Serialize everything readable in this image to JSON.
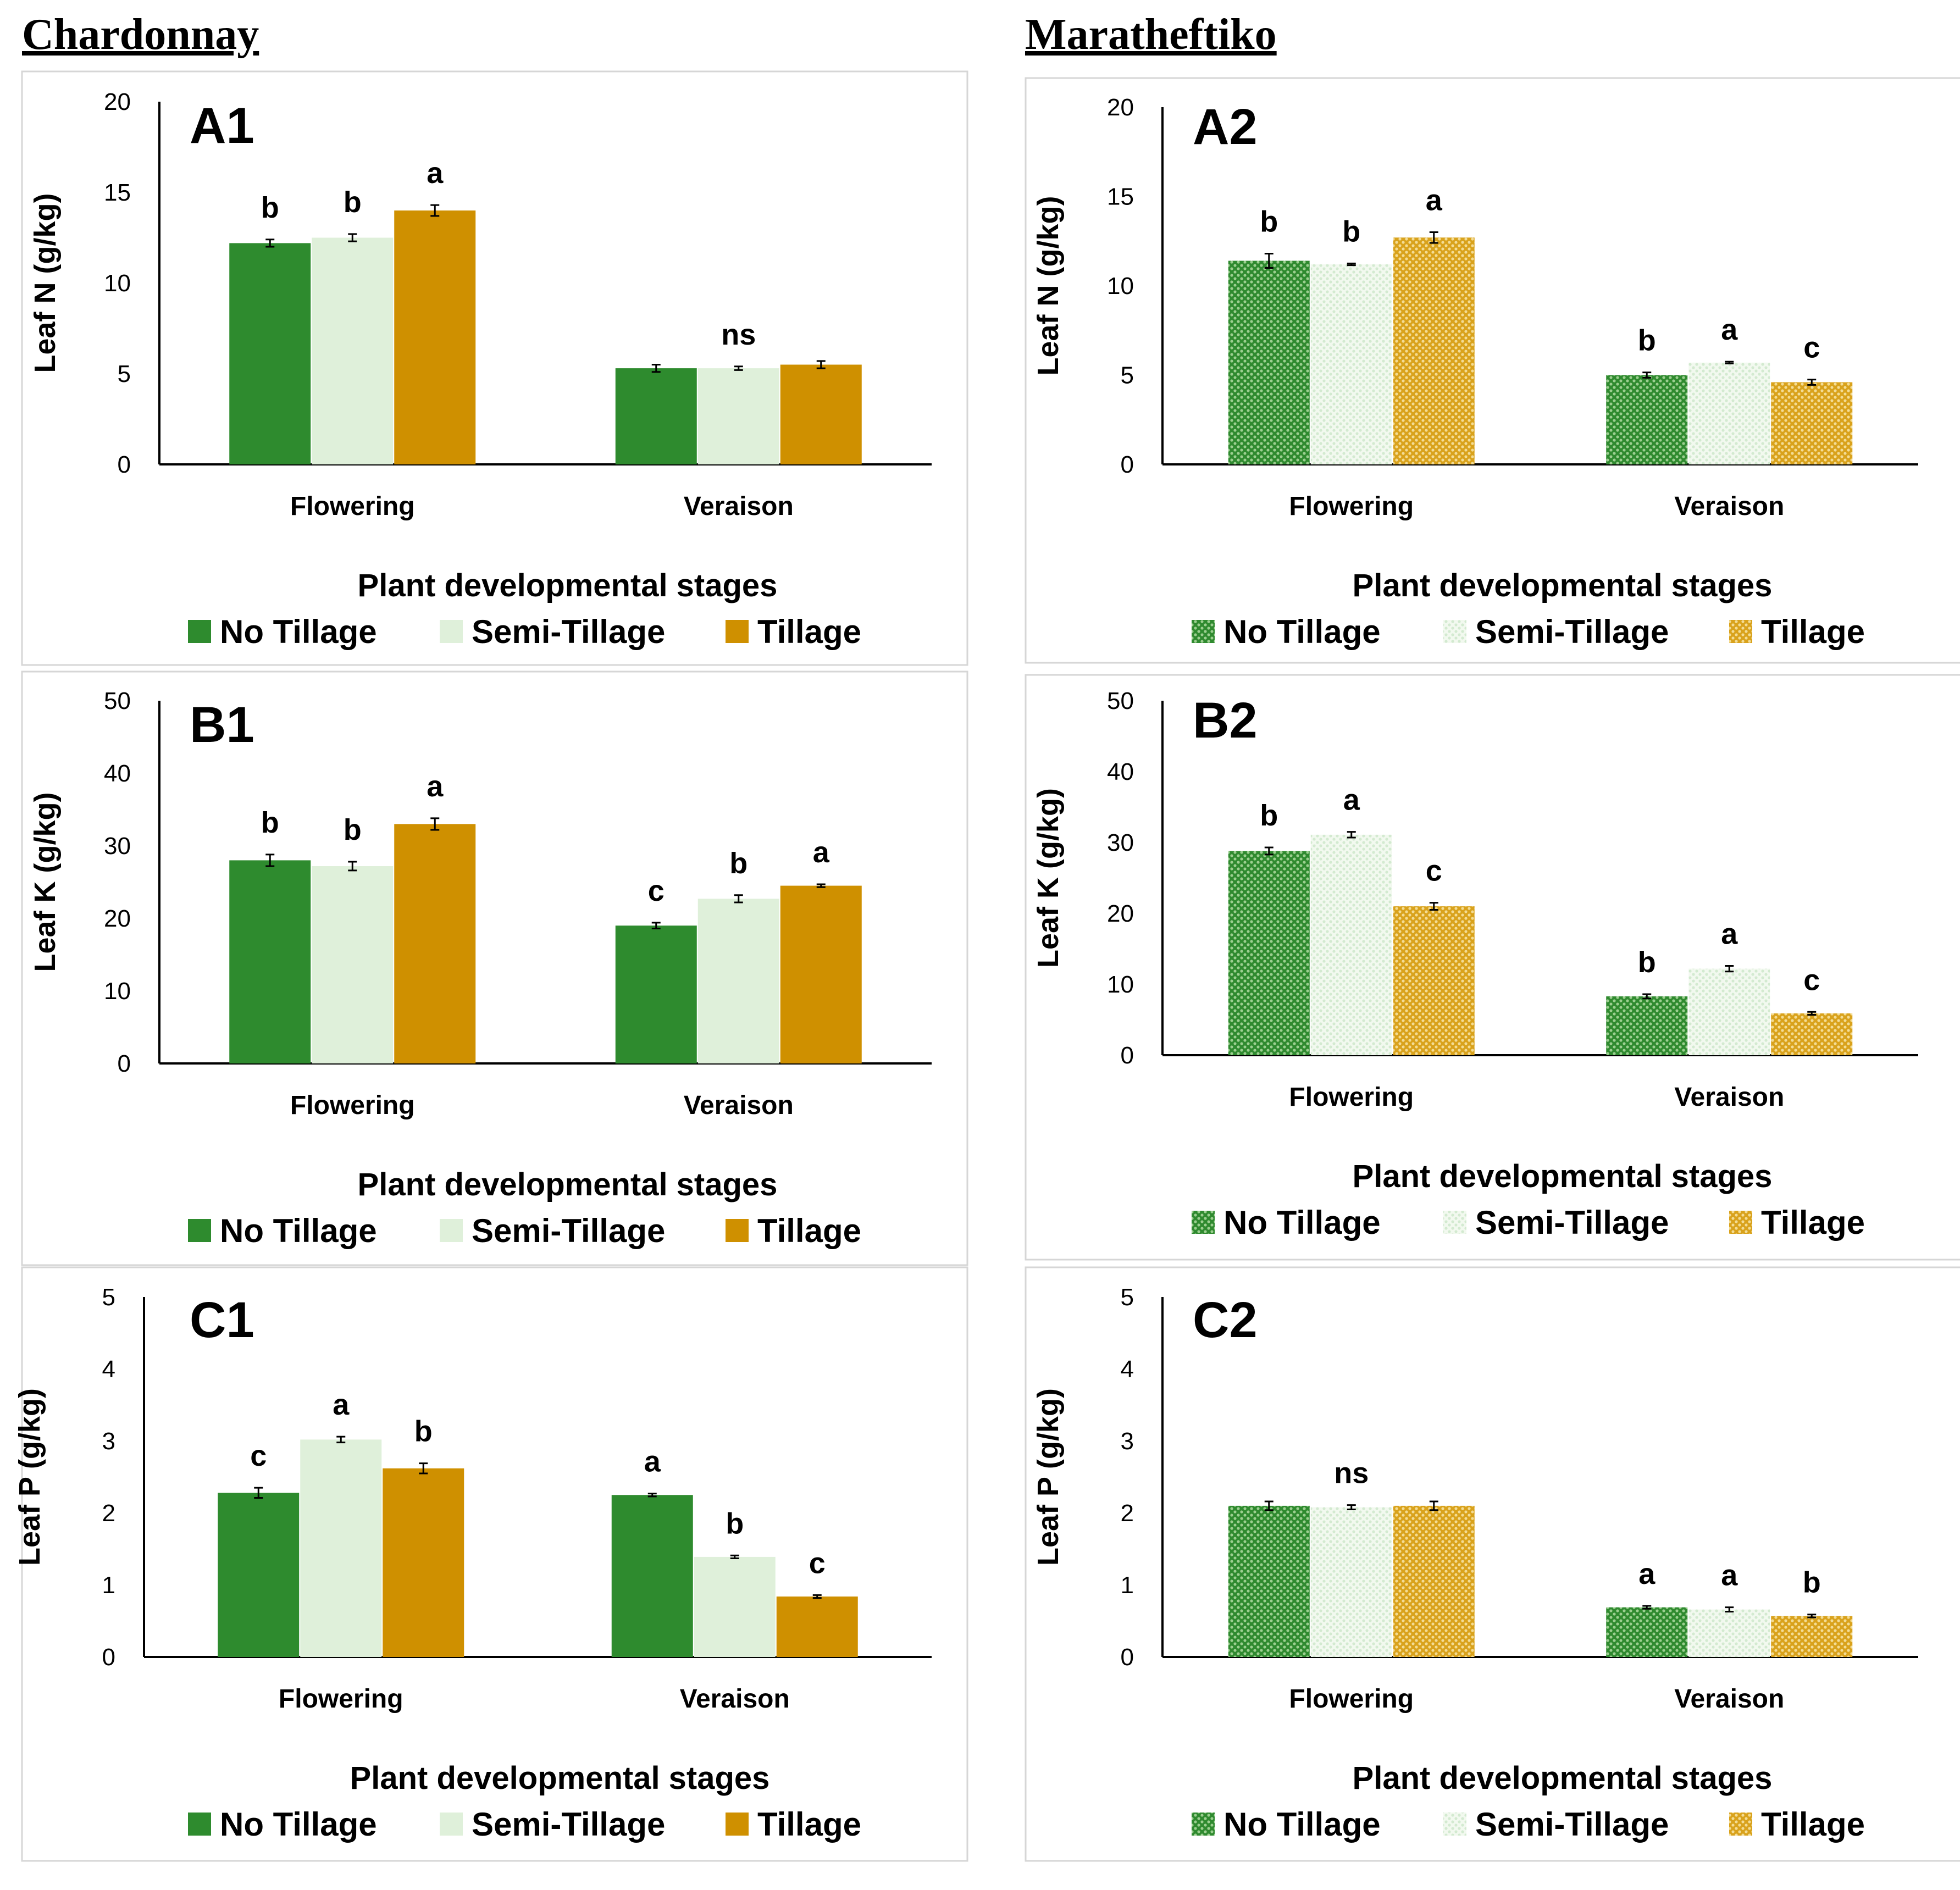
{
  "headings": {
    "left": "Chardonnay",
    "right": "Maratheftiko"
  },
  "colors": {
    "no_tillage": "#2e8b2e",
    "semi_tillage": "#dff0da",
    "tillage": "#cf9000",
    "no_tillage_pattern_bg": "#2f8a2f",
    "no_tillage_pattern_fg": "#9ccf90",
    "semi_tillage_pattern_bg": "#f2f9ef",
    "semi_tillage_pattern_fg": "#d3ead0",
    "tillage_pattern_bg": "#d9a21c",
    "tillage_pattern_fg": "#f4dc94"
  },
  "chart_data": [
    {
      "panel": "A1",
      "cultivar": "Chardonnay",
      "type": "bar",
      "patterned": false,
      "title": "",
      "xlabel": "Plant developmental stages",
      "ylabel": "Leaf N (g/kg)",
      "ylim": [
        0,
        20
      ],
      "yticks": [
        "0",
        "5",
        "10",
        "15",
        "20"
      ],
      "categories": [
        "Flowering",
        "Veraison"
      ],
      "series": [
        {
          "name": "No Tillage",
          "values": [
            12.2,
            5.3
          ],
          "errors": [
            0.2,
            0.2
          ]
        },
        {
          "name": "Semi-Tillage",
          "values": [
            12.5,
            5.3
          ],
          "errors": [
            0.2,
            0.1
          ]
        },
        {
          "name": "Tillage",
          "values": [
            14.0,
            5.5
          ],
          "errors": [
            0.3,
            0.2
          ]
        }
      ],
      "letters": [
        [
          "b",
          "b",
          "a"
        ],
        [
          "",
          "ns",
          ""
        ]
      ],
      "legend": [
        "No Tillage",
        "Semi-Tillage",
        "Tillage"
      ],
      "legend_position": "bottom"
    },
    {
      "panel": "A2",
      "cultivar": "Maratheftiko",
      "type": "bar",
      "patterned": true,
      "title": "",
      "xlabel": "Plant developmental stages",
      "ylabel": "Leaf N (g/kg)",
      "ylim": [
        0,
        20
      ],
      "yticks": [
        "0",
        "5",
        "10",
        "15",
        "20"
      ],
      "categories": [
        "Flowering",
        "Veraison"
      ],
      "series": [
        {
          "name": "No Tillage",
          "values": [
            11.4,
            5.0
          ],
          "errors": [
            0.4,
            0.15
          ]
        },
        {
          "name": "Semi-Tillage",
          "values": [
            11.2,
            5.7
          ],
          "errors": [
            0.05,
            0.05
          ]
        },
        {
          "name": "Tillage",
          "values": [
            12.7,
            4.6
          ],
          "errors": [
            0.3,
            0.15
          ]
        }
      ],
      "letters": [
        [
          "b",
          "b",
          "a"
        ],
        [
          "b",
          "a",
          "c"
        ]
      ],
      "legend": [
        "No Tillage",
        "Semi-Tillage",
        "Tillage"
      ],
      "legend_position": "bottom"
    },
    {
      "panel": "B1",
      "cultivar": "Chardonnay",
      "type": "bar",
      "patterned": false,
      "title": "",
      "xlabel": "Plant developmental stages",
      "ylabel": "Leaf K (g/kg)",
      "ylim": [
        0,
        50
      ],
      "yticks": [
        "0",
        "10",
        "20",
        "30",
        "40",
        "50"
      ],
      "categories": [
        "Flowering",
        "Veraison"
      ],
      "series": [
        {
          "name": "No Tillage",
          "values": [
            28.0,
            19.0
          ],
          "errors": [
            0.8,
            0.4
          ]
        },
        {
          "name": "Semi-Tillage",
          "values": [
            27.2,
            22.7
          ],
          "errors": [
            0.6,
            0.5
          ]
        },
        {
          "name": "Tillage",
          "values": [
            33.0,
            24.5
          ],
          "errors": [
            0.8,
            0.2
          ]
        }
      ],
      "letters": [
        [
          "b",
          "b",
          "a"
        ],
        [
          "c",
          "b",
          "a"
        ]
      ],
      "legend": [
        "No Tillage",
        "Semi-Tillage",
        "Tillage"
      ],
      "legend_position": "bottom"
    },
    {
      "panel": "B2",
      "cultivar": "Maratheftiko",
      "type": "bar",
      "patterned": true,
      "title": "",
      "xlabel": "Plant developmental stages",
      "ylabel": "Leaf K (g/kg)",
      "ylim": [
        0,
        50
      ],
      "yticks": [
        "0",
        "10",
        "20",
        "30",
        "40",
        "50"
      ],
      "categories": [
        "Flowering",
        "Veraison"
      ],
      "series": [
        {
          "name": "No Tillage",
          "values": [
            28.8,
            8.3
          ],
          "errors": [
            0.5,
            0.3
          ]
        },
        {
          "name": "Semi-Tillage",
          "values": [
            31.1,
            12.2
          ],
          "errors": [
            0.4,
            0.4
          ]
        },
        {
          "name": "Tillage",
          "values": [
            21.0,
            5.9
          ],
          "errors": [
            0.5,
            0.2
          ]
        }
      ],
      "letters": [
        [
          "b",
          "a",
          "c"
        ],
        [
          "b",
          "a",
          "c"
        ]
      ],
      "legend": [
        "No Tillage",
        "Semi-Tillage",
        "Tillage"
      ],
      "legend_position": "bottom"
    },
    {
      "panel": "C1",
      "cultivar": "Chardonnay",
      "type": "bar",
      "patterned": false,
      "title": "",
      "xlabel": "Plant developmental stages",
      "ylabel": "Leaf P (g/kg)",
      "ylim": [
        0,
        5
      ],
      "yticks": [
        "0",
        "1",
        "2",
        "3",
        "4",
        "5"
      ],
      "categories": [
        "Flowering",
        "Veraison"
      ],
      "series": [
        {
          "name": "No Tillage",
          "values": [
            2.28,
            2.25
          ],
          "errors": [
            0.07,
            0.02
          ]
        },
        {
          "name": "Semi-Tillage",
          "values": [
            3.02,
            1.39
          ],
          "errors": [
            0.04,
            0.02
          ]
        },
        {
          "name": "Tillage",
          "values": [
            2.62,
            0.84
          ],
          "errors": [
            0.07,
            0.02
          ]
        }
      ],
      "letters": [
        [
          "c",
          "a",
          "b"
        ],
        [
          "a",
          "b",
          "c"
        ]
      ],
      "legend": [
        "No Tillage",
        "Semi-Tillage",
        "Tillage"
      ],
      "legend_position": "bottom"
    },
    {
      "panel": "C2",
      "cultivar": "Maratheftiko",
      "type": "bar",
      "patterned": true,
      "title": "",
      "xlabel": "Plant developmental stages",
      "ylabel": "Leaf P (g/kg)",
      "ylim": [
        0,
        5
      ],
      "yticks": [
        "0",
        "1",
        "2",
        "3",
        "4",
        "5"
      ],
      "categories": [
        "Flowering",
        "Veraison"
      ],
      "series": [
        {
          "name": "No Tillage",
          "values": [
            2.1,
            0.69
          ],
          "errors": [
            0.06,
            0.02
          ]
        },
        {
          "name": "Semi-Tillage",
          "values": [
            2.08,
            0.66
          ],
          "errors": [
            0.03,
            0.03
          ]
        },
        {
          "name": "Tillage",
          "values": [
            2.1,
            0.57
          ],
          "errors": [
            0.06,
            0.02
          ]
        }
      ],
      "letters": [
        [
          "",
          "ns",
          ""
        ],
        [
          "a",
          "a",
          "b"
        ]
      ],
      "legend": [
        "No Tillage",
        "Semi-Tillage",
        "Tillage"
      ],
      "legend_position": "bottom"
    }
  ]
}
